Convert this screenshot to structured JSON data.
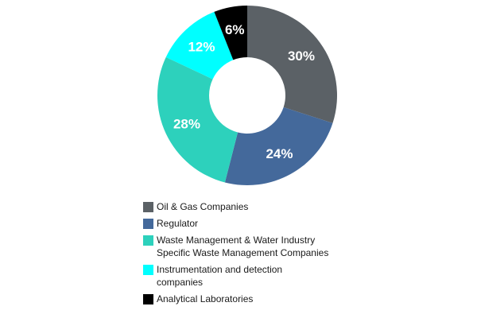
{
  "chart_data": {
    "type": "pie",
    "categories": [
      "Oil & Gas Companies",
      "Regulator",
      "Waste Management  & Water Industry\nSpecific Waste Management Companies",
      "Instrumentation and detection\ncompanies",
      "Analytical Laboratories"
    ],
    "values": [
      30,
      24,
      28,
      12,
      6
    ],
    "value_labels": [
      "30%",
      "24%",
      "28%",
      "12%",
      "6%"
    ],
    "colors": [
      "#5b6166",
      "#44699b",
      "#2dd1bc",
      "#00ffff",
      "#000000"
    ],
    "label_colors": [
      "#ffffff",
      "#ffffff",
      "#ffffff",
      "#ffffff",
      "#ffffff"
    ],
    "donut": true,
    "legend_position": "bottom"
  }
}
